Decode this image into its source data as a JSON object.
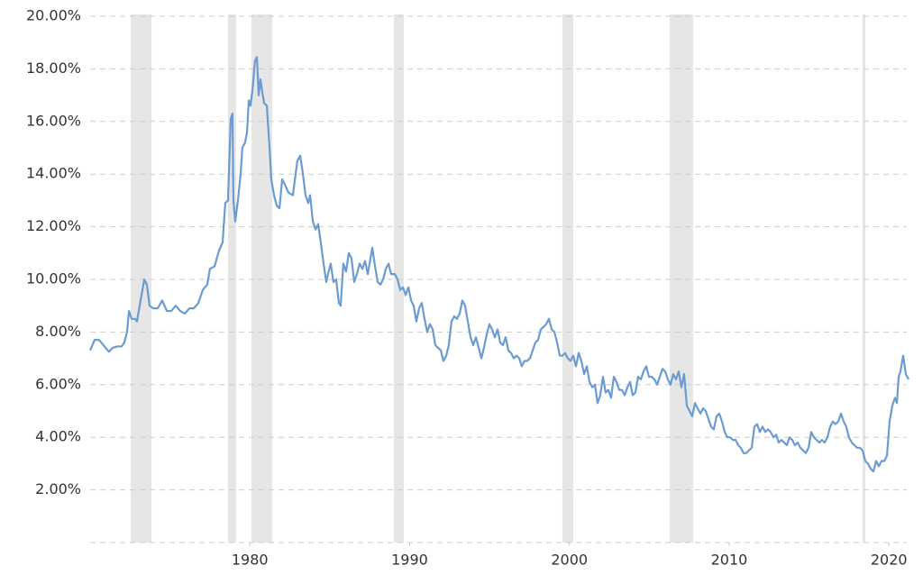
{
  "chart_data": {
    "type": "line",
    "xlim": [
      1970,
      2021.23
    ],
    "xticks": [
      1980,
      1990,
      2000,
      2010,
      2020
    ],
    "ylim": [
      0,
      20
    ],
    "yticks": [
      {
        "value": 2,
        "label": "2.00%"
      },
      {
        "value": 4,
        "label": "4.00%"
      },
      {
        "value": 6,
        "label": "6.00%"
      },
      {
        "value": 8,
        "label": "8.00%"
      },
      {
        "value": 10,
        "label": "10.00%"
      },
      {
        "value": 12,
        "label": "12.00%"
      },
      {
        "value": 14,
        "label": "14.00%"
      },
      {
        "value": 16,
        "label": "16.00%"
      },
      {
        "value": 18,
        "label": "18.00%"
      },
      {
        "value": 20,
        "label": "20.00%"
      }
    ],
    "grid": true,
    "shaded_regions": [
      [
        1972.54,
        1973.84
      ],
      [
        1978.63,
        1979.14
      ],
      [
        1980.1,
        1981.4
      ],
      [
        1989.01,
        1989.63
      ],
      [
        1999.56,
        2000.24
      ],
      [
        2006.28,
        2007.74
      ],
      [
        2018.35,
        2018.52
      ]
    ],
    "shade_color": "#e6e6e6",
    "x": [
      1970.0,
      1970.28,
      1970.56,
      1970.9,
      1971.18,
      1971.41,
      1971.69,
      1971.97,
      1972.14,
      1972.31,
      1972.43,
      1972.6,
      1972.82,
      1972.93,
      1973.1,
      1973.39,
      1973.55,
      1973.72,
      1973.95,
      1974.23,
      1974.51,
      1974.8,
      1975.08,
      1975.36,
      1975.64,
      1975.92,
      1976.21,
      1976.49,
      1976.77,
      1977.05,
      1977.33,
      1977.5,
      1977.79,
      1978.07,
      1978.29,
      1978.46,
      1978.63,
      1978.8,
      1978.91,
      1978.97,
      1979.08,
      1979.25,
      1979.42,
      1979.53,
      1979.7,
      1979.82,
      1979.93,
      1980.04,
      1980.16,
      1980.32,
      1980.44,
      1980.55,
      1980.66,
      1980.78,
      1980.89,
      1981.06,
      1981.23,
      1981.34,
      1981.51,
      1981.68,
      1981.85,
      1982.02,
      1982.19,
      1982.41,
      1982.69,
      1982.97,
      1983.15,
      1983.32,
      1983.48,
      1983.65,
      1983.77,
      1983.94,
      1984.11,
      1984.27,
      1984.44,
      1984.61,
      1984.78,
      1984.89,
      1985.06,
      1985.23,
      1985.4,
      1985.57,
      1985.68,
      1985.85,
      1986.02,
      1986.19,
      1986.36,
      1986.53,
      1986.7,
      1986.87,
      1987.04,
      1987.21,
      1987.38,
      1987.49,
      1987.66,
      1987.83,
      1988.0,
      1988.17,
      1988.34,
      1988.51,
      1988.68,
      1988.84,
      1989.07,
      1989.24,
      1989.41,
      1989.58,
      1989.75,
      1989.92,
      1990.09,
      1990.25,
      1990.42,
      1990.59,
      1990.76,
      1990.93,
      1991.1,
      1991.27,
      1991.44,
      1991.61,
      1991.78,
      1991.95,
      1992.12,
      1992.29,
      1992.45,
      1992.62,
      1992.79,
      1992.96,
      1993.13,
      1993.3,
      1993.47,
      1993.64,
      1993.81,
      1993.98,
      1994.15,
      1994.32,
      1994.49,
      1994.65,
      1994.82,
      1994.99,
      1995.16,
      1995.33,
      1995.5,
      1995.67,
      1995.84,
      1996.01,
      1996.18,
      1996.35,
      1996.52,
      1996.69,
      1996.86,
      1997.02,
      1997.19,
      1997.36,
      1997.53,
      1997.7,
      1997.87,
      1998.04,
      1998.21,
      1998.38,
      1998.55,
      1998.72,
      1998.89,
      1999.06,
      1999.23,
      1999.4,
      1999.56,
      1999.73,
      1999.9,
      2000.07,
      2000.24,
      2000.41,
      2000.58,
      2000.75,
      2000.92,
      2001.09,
      2001.26,
      2001.43,
      2001.6,
      2001.76,
      2001.93,
      2002.1,
      2002.27,
      2002.44,
      2002.61,
      2002.78,
      2002.95,
      2003.12,
      2003.29,
      2003.46,
      2003.63,
      2003.8,
      2003.96,
      2004.13,
      2004.3,
      2004.47,
      2004.64,
      2004.81,
      2004.98,
      2005.15,
      2005.32,
      2005.49,
      2005.66,
      2005.83,
      2006.0,
      2006.16,
      2006.33,
      2006.5,
      2006.67,
      2006.84,
      2007.01,
      2007.18,
      2007.35,
      2007.52,
      2007.69,
      2007.86,
      2008.03,
      2008.2,
      2008.37,
      2008.53,
      2008.7,
      2008.87,
      2009.04,
      2009.21,
      2009.38,
      2009.55,
      2009.72,
      2009.89,
      2010.06,
      2010.23,
      2010.4,
      2010.57,
      2010.73,
      2010.9,
      2011.07,
      2011.24,
      2011.41,
      2011.58,
      2011.75,
      2011.92,
      2012.09,
      2012.26,
      2012.43,
      2012.6,
      2012.77,
      2012.94,
      2013.1,
      2013.27,
      2013.44,
      2013.61,
      2013.78,
      2013.95,
      2014.12,
      2014.29,
      2014.46,
      2014.63,
      2014.8,
      2014.97,
      2015.14,
      2015.3,
      2015.47,
      2015.64,
      2015.81,
      2015.98,
      2016.15,
      2016.32,
      2016.49,
      2016.66,
      2016.83,
      2017.0,
      2017.17,
      2017.33,
      2017.5,
      2017.67,
      2017.84,
      2018.01,
      2018.18,
      2018.35,
      2018.52,
      2018.69,
      2018.86,
      2019.03,
      2019.2,
      2019.37,
      2019.54,
      2019.71,
      2019.88,
      2020.04,
      2020.21,
      2020.38,
      2020.5,
      2020.61,
      2020.72,
      2020.89,
      2021.06,
      2021.23
    ],
    "series": [
      {
        "color": "#6b9bd1",
        "values": [
          7.3,
          7.7,
          7.7,
          7.45,
          7.25,
          7.4,
          7.45,
          7.45,
          7.6,
          8.0,
          8.8,
          8.5,
          8.5,
          8.4,
          9.0,
          10.0,
          9.8,
          9.0,
          8.9,
          8.9,
          9.2,
          8.8,
          8.8,
          9.0,
          8.8,
          8.7,
          8.9,
          8.9,
          9.1,
          9.6,
          9.8,
          10.4,
          10.5,
          11.1,
          11.4,
          12.9,
          13.0,
          16.1,
          16.3,
          13.0,
          12.2,
          13.0,
          14.0,
          15.0,
          15.2,
          15.6,
          16.8,
          16.6,
          17.2,
          18.3,
          18.45,
          17.0,
          17.6,
          17.1,
          16.7,
          16.6,
          15.0,
          13.8,
          13.2,
          12.8,
          12.7,
          13.8,
          13.6,
          13.3,
          13.2,
          14.5,
          14.7,
          14.0,
          13.2,
          12.9,
          13.2,
          12.2,
          11.9,
          12.1,
          11.4,
          10.6,
          9.9,
          10.2,
          10.6,
          9.9,
          10.0,
          9.1,
          9.0,
          10.6,
          10.3,
          11.0,
          10.8,
          9.9,
          10.2,
          10.6,
          10.4,
          10.7,
          10.2,
          10.6,
          11.2,
          10.5,
          9.9,
          9.8,
          10.0,
          10.4,
          10.6,
          10.2,
          10.2,
          10.0,
          9.6,
          9.7,
          9.4,
          9.7,
          9.2,
          9.0,
          8.4,
          8.9,
          9.1,
          8.5,
          8.0,
          8.3,
          8.1,
          7.5,
          7.4,
          7.3,
          6.9,
          7.1,
          7.5,
          8.4,
          8.6,
          8.5,
          8.7,
          9.2,
          9.0,
          8.4,
          7.8,
          7.5,
          7.8,
          7.4,
          7.0,
          7.4,
          7.9,
          8.3,
          8.1,
          7.8,
          8.1,
          7.6,
          7.5,
          7.8,
          7.3,
          7.2,
          7.0,
          7.1,
          7.0,
          6.7,
          6.9,
          6.9,
          7.0,
          7.3,
          7.6,
          7.7,
          8.1,
          8.2,
          8.3,
          8.5,
          8.1,
          8.0,
          7.6,
          7.1,
          7.1,
          7.2,
          7.0,
          6.9,
          7.1,
          6.7,
          7.2,
          6.9,
          6.4,
          6.7,
          6.1,
          5.9,
          6.0,
          5.3,
          5.6,
          6.3,
          5.7,
          5.8,
          5.5,
          6.3,
          6.1,
          5.8,
          5.8,
          5.6,
          5.9,
          6.1,
          5.6,
          5.7,
          6.3,
          6.2,
          6.5,
          6.7,
          6.3,
          6.3,
          6.2,
          6.0,
          6.3,
          6.6,
          6.5,
          6.2,
          6.0,
          6.4,
          6.2,
          6.5,
          5.9,
          6.4,
          5.2,
          5.0,
          4.8,
          5.3,
          5.1,
          4.9,
          5.1,
          5.0,
          4.7,
          4.4,
          4.3,
          4.8,
          4.9,
          4.6,
          4.2,
          4.0,
          4.0,
          3.9,
          3.9,
          3.7,
          3.6,
          3.4,
          3.4,
          3.5,
          3.6,
          4.4,
          4.5,
          4.2,
          4.4,
          4.2,
          4.3,
          4.2,
          4.0,
          4.1,
          3.8,
          3.9,
          3.8,
          3.7,
          4.0,
          3.9,
          3.7,
          3.8,
          3.6,
          3.5,
          3.4,
          3.6,
          4.2,
          4.0,
          3.9,
          3.8,
          3.9,
          3.8,
          4.0,
          4.4,
          4.6,
          4.5,
          4.6,
          4.9,
          4.6,
          4.4,
          4.0,
          3.8,
          3.7,
          3.6,
          3.6,
          3.5,
          3.1,
          3.0,
          2.8,
          2.7,
          3.1,
          2.9,
          3.1,
          3.1,
          3.3,
          4.6,
          5.2,
          5.5,
          5.3,
          6.3,
          6.5,
          7.1,
          6.4,
          6.2
        ]
      }
    ]
  }
}
